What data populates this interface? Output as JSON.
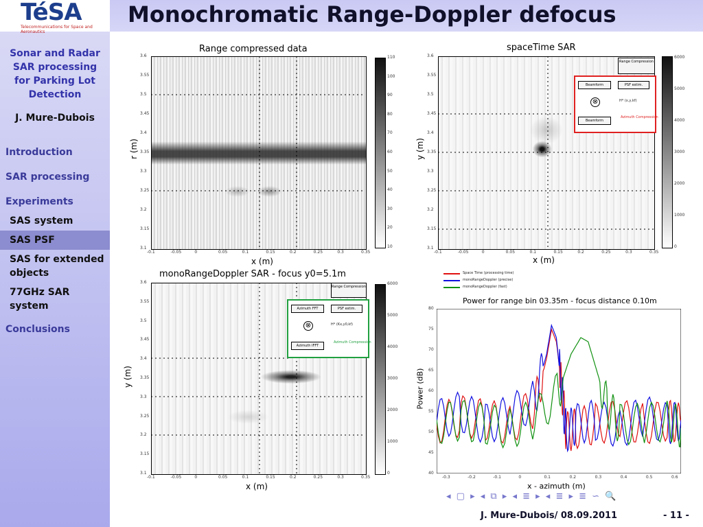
{
  "logo": {
    "text": "TéSA",
    "tagline": "Telecommunications for Space and Aeronautics"
  },
  "slide": {
    "title": "Monochromatic Range-Doppler defocus",
    "page": "- 11 -",
    "footer": "J. Mure-Dubois/ 08.09.2011"
  },
  "sidebar": {
    "talk_title": [
      "Sonar and Radar",
      "SAR processing",
      "for Parking Lot",
      "Detection"
    ],
    "author": "J. Mure-Dubois",
    "sections": [
      "Introduction",
      "SAR processing",
      "Experiments"
    ],
    "subsections": [
      "SAS system",
      "SAS PSF",
      "SAS for extended objects",
      "77GHz SAR system"
    ],
    "conclusions": "Conclusions",
    "active": "SAS PSF"
  },
  "nav_symbols": "◂ ▢ ▸ ◂ ⧉ ▸ ◂ ≣ ▸ ◂ ≣ ▸ ≣ ∽ 🔍",
  "plots": {
    "range": {
      "title": "Range compressed data",
      "xlabel": "x (m)",
      "ylabel": "r (m)",
      "xticks": [
        "-0.1",
        "-0.05",
        "0",
        "0.05",
        "0.1",
        "0.15",
        "0.2",
        "0.25",
        "0.3",
        "0.35"
      ],
      "yticks": [
        "3.1",
        "3.15",
        "3.2",
        "3.25",
        "3.3",
        "3.35",
        "3.4",
        "3.45",
        "3.5",
        "3.55",
        "3.6"
      ],
      "cticks": [
        "10",
        "20",
        "30",
        "40",
        "50",
        "60",
        "70",
        "80",
        "90",
        "100",
        "110"
      ]
    },
    "spacetime": {
      "title": "spaceTime SAR",
      "xlabel": "x (m)",
      "ylabel": "y (m)",
      "xticks": [
        "-0.1",
        "-0.05",
        "0",
        "0.05",
        "0.1",
        "0.15",
        "0.2",
        "0.25",
        "0.3",
        "0.35"
      ],
      "yticks": [
        "3.1",
        "3.15",
        "3.2",
        "3.25",
        "3.3",
        "3.35",
        "3.4",
        "3.45",
        "3.5",
        "3.55",
        "3.6"
      ],
      "cticks": [
        "0",
        "1000",
        "2000",
        "3000",
        "4000",
        "5000",
        "6000"
      ],
      "diagram": {
        "top": "Range Compression",
        "left1": "Beamform",
        "right1": "PSF estim.",
        "left2": "Beamform",
        "sub": "Azimuth Compression",
        "hlabel": "H* (x,y,kf)"
      }
    },
    "doppler": {
      "title": "monoRangeDoppler SAR - focus y0=5.1m",
      "xlabel": "x (m)",
      "ylabel": "y (m)",
      "xticks": [
        "-0.1",
        "-0.05",
        "0",
        "0.05",
        "0.1",
        "0.15",
        "0.2",
        "0.25",
        "0.3",
        "0.35"
      ],
      "yticks": [
        "3.1",
        "3.15",
        "3.2",
        "3.25",
        "3.3",
        "3.35",
        "3.4",
        "3.45",
        "3.5",
        "3.55",
        "3.6"
      ],
      "cticks": [
        "0",
        "1000",
        "2000",
        "3000",
        "4000",
        "5000",
        "6000"
      ],
      "diagram": {
        "top": "Range Compression",
        "left1": "Azimuth FFT",
        "right1": "PSF estim.",
        "left2": "Azimuth IFFT",
        "sub": "Azimuth Compression",
        "hlabel": "H* (Kx,y0,kf)"
      }
    },
    "power": {
      "title": "Power for range bin 03.35m - focus distance 0.10m",
      "xlabel": "x - azimuth (m)",
      "ylabel": "Power (dB)",
      "xticks": [
        "-0.3",
        "-0.2",
        "-0.1",
        "0",
        "0.1",
        "0.2",
        "0.3",
        "0.4",
        "0.5",
        "0.6"
      ],
      "yticks": [
        "40",
        "45",
        "50",
        "55",
        "60",
        "65",
        "70",
        "75",
        "80"
      ],
      "legend": [
        {
          "text": "Space Time (processing time)",
          "color": "#e01010"
        },
        {
          "text": "monoRangeDoppler (precise)",
          "color": "#1010e0"
        },
        {
          "text": "monoRangeDoppler (fast)",
          "color": "#109010"
        }
      ]
    }
  },
  "chart_data": {
    "type": "line",
    "title": "Power for range bin 03.35m - focus distance 0.10m",
    "xlabel": "x - azimuth (m)",
    "ylabel": "Power (dB)",
    "xlim": [
      -0.35,
      0.65
    ],
    "ylim": [
      40,
      80
    ],
    "series": [
      {
        "name": "Space Time",
        "color": "#e01010",
        "x": [
          -0.35,
          -0.25,
          -0.15,
          -0.05,
          0.05,
          0.1,
          0.12,
          0.14,
          0.16,
          0.18,
          0.22,
          0.3,
          0.4,
          0.5,
          0.6,
          0.65
        ],
        "values": [
          52,
          54,
          53,
          52,
          56,
          68,
          75,
          72,
          62,
          50,
          51,
          52,
          53,
          52,
          53,
          52
        ]
      },
      {
        "name": "monoRangeDoppler (precise)",
        "color": "#1010e0",
        "x": [
          -0.35,
          -0.25,
          -0.15,
          -0.05,
          0.05,
          0.1,
          0.12,
          0.14,
          0.16,
          0.18,
          0.22,
          0.3,
          0.4,
          0.5,
          0.6,
          0.65
        ],
        "values": [
          53,
          55,
          52,
          54,
          58,
          69,
          76,
          73,
          61,
          50,
          52,
          53,
          51,
          54,
          52,
          53
        ]
      },
      {
        "name": "monoRangeDoppler (fast)",
        "color": "#109010",
        "x": [
          -0.35,
          -0.25,
          -0.15,
          -0.05,
          0.05,
          0.15,
          0.2,
          0.24,
          0.27,
          0.3,
          0.35,
          0.4,
          0.5,
          0.6,
          0.65
        ],
        "values": [
          52,
          53,
          52,
          51,
          53,
          60,
          69,
          73,
          72,
          66,
          56,
          52,
          52,
          53,
          51
        ]
      }
    ]
  }
}
